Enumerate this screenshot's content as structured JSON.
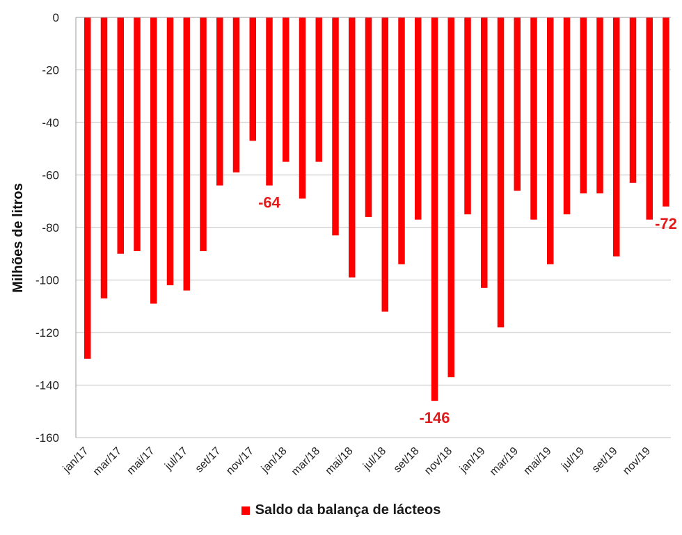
{
  "chart_data": {
    "type": "bar",
    "ylabel": "Milhões de litros",
    "ylim": [
      -160,
      0
    ],
    "yticks": [
      0,
      -20,
      -40,
      -60,
      -80,
      -100,
      -120,
      -140,
      -160
    ],
    "grid": true,
    "legend_position": "bottom",
    "color": "#ff0000",
    "annotation_color": "#e31a1c",
    "x_tick_labels": [
      "jan/17",
      "mar/17",
      "mai/17",
      "jul/17",
      "set/17",
      "nov/17",
      "jan/18",
      "mar/18",
      "mai/18",
      "jul/18",
      "set/18",
      "nov/18",
      "jan/19",
      "mar/19",
      "mai/19",
      "jul/19",
      "set/19",
      "nov/19"
    ],
    "categories": [
      "jan/17",
      "fev/17",
      "mar/17",
      "abr/17",
      "mai/17",
      "jun/17",
      "jul/17",
      "ago/17",
      "set/17",
      "out/17",
      "nov/17",
      "dez/17",
      "jan/18",
      "fev/18",
      "mar/18",
      "abr/18",
      "mai/18",
      "jun/18",
      "jul/18",
      "ago/18",
      "set/18",
      "out/18",
      "nov/18",
      "dez/18",
      "jan/19",
      "fev/19",
      "mar/19",
      "abr/19",
      "mai/19",
      "jun/19",
      "jul/19",
      "ago/19",
      "set/19",
      "out/19",
      "nov/19",
      "dez/19"
    ],
    "series": [
      {
        "name": "Saldo da balança de lácteos",
        "values": [
          -130,
          -107,
          -90,
          -89,
          -109,
          -102,
          -104,
          -89,
          -64,
          -59,
          -47,
          -64,
          -55,
          -69,
          -55,
          -83,
          -99,
          -76,
          -112,
          -94,
          -77,
          -146,
          -137,
          -75,
          -103,
          -118,
          -66,
          -77,
          -94,
          -75,
          -67,
          -67,
          -91,
          -63,
          -77,
          -72
        ]
      }
    ],
    "annotations": [
      {
        "category": "dez/17",
        "text": "-64"
      },
      {
        "category": "out/18",
        "text": "-146"
      },
      {
        "category": "dez/19",
        "text": "-72"
      }
    ]
  }
}
